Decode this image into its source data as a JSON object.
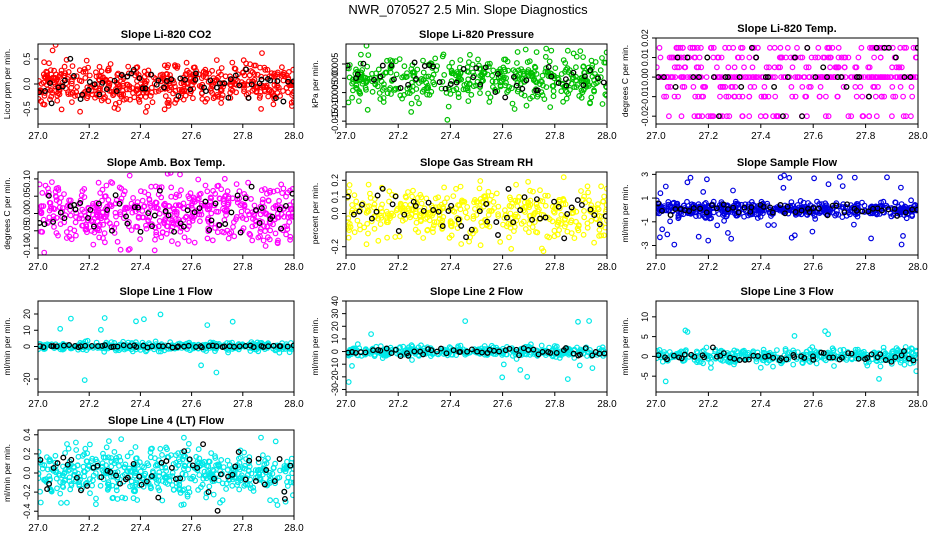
{
  "page_title": "NWR_070527  2.5 Min. Slope Diagnostics",
  "colors": {
    "axis": "#000000",
    "raw_point": "#000000"
  },
  "chart_data": [
    {
      "type": "scatter",
      "title": "Slope Li-820 CO2",
      "ylabel": "Licor ppm per min.",
      "xlim": [
        27.0,
        28.0
      ],
      "ylim": [
        -0.8,
        0.8
      ],
      "xticks": [
        27.0,
        27.2,
        27.4,
        27.6,
        27.8,
        28.0
      ],
      "xtick_labels": [
        "27.0",
        "27.2",
        "27.4",
        "27.6",
        "27.8",
        "28.0"
      ],
      "yticks": [
        -0.5,
        0.0,
        0.5
      ],
      "ytick_labels": [
        "-0.5",
        "0.0",
        "0.5"
      ],
      "color": "#ff0000",
      "spread": 0.22,
      "black_spread": 0.18,
      "seed": 11,
      "n": 520,
      "nblack": 60
    },
    {
      "type": "scatter",
      "title": "Slope Li-820 Pressure",
      "ylabel": "kPa per min.",
      "xlim": [
        27.0,
        28.0
      ],
      "ylim": [
        -0.016,
        0.012
      ],
      "xticks": [
        27.0,
        27.2,
        27.4,
        27.6,
        27.8,
        28.0
      ],
      "xtick_labels": [
        "27.0",
        "27.2",
        "27.4",
        "27.6",
        "27.8",
        "28.0"
      ],
      "yticks": [
        -0.015,
        -0.01,
        -0.005,
        0.0,
        0.005
      ],
      "ytick_labels": [
        "-0.015",
        "-0.010",
        "-0.005",
        "0.000",
        "0.005"
      ],
      "color": "#00c000",
      "spread": 0.004,
      "black_spread": 0.003,
      "seed": 23,
      "n": 450,
      "nblack": 45
    },
    {
      "type": "scatter",
      "title": "Slope Li-820 Temp.",
      "ylabel": "degrees C per min.",
      "xlim": [
        27.0,
        28.0
      ],
      "ylim": [
        -0.024,
        0.02
      ],
      "xticks": [
        27.0,
        27.2,
        27.4,
        27.6,
        27.8,
        28.0
      ],
      "xtick_labels": [
        "27.0",
        "27.2",
        "27.4",
        "27.6",
        "27.8",
        "28.0"
      ],
      "yticks": [
        -0.02,
        -0.01,
        0.0,
        0.01,
        0.02
      ],
      "ytick_labels": [
        "-0.02",
        "-0.01",
        "0.00",
        "0.01",
        "0.02"
      ],
      "color": "#ff00ff",
      "quantized": [
        0.0,
        0.0,
        0.0,
        0.0,
        0.005,
        -0.005,
        0.01,
        -0.01,
        0.015,
        -0.02
      ],
      "seed": 37,
      "n": 420,
      "nblack": 40
    },
    {
      "type": "scatter",
      "title": "Slope Amb. Box Temp.",
      "ylabel": "degrees C per min.",
      "xlim": [
        27.0,
        28.0
      ],
      "ylim": [
        -0.12,
        0.12
      ],
      "xticks": [
        27.0,
        27.2,
        27.4,
        27.6,
        27.8,
        28.0
      ],
      "xtick_labels": [
        "27.0",
        "27.2",
        "27.4",
        "27.6",
        "27.8",
        "28.0"
      ],
      "yticks": [
        -0.1,
        -0.05,
        0.0,
        0.05,
        0.1
      ],
      "ytick_labels": [
        "-0.10",
        "-0.05",
        "0.00",
        "0.05",
        "0.10"
      ],
      "color": "#ff00ff",
      "spread": 0.045,
      "black_spread": 0.035,
      "seed": 41,
      "n": 520,
      "nblack": 55
    },
    {
      "type": "scatter",
      "title": "Slope Gas Stream RH",
      "ylabel": "percent per min.",
      "xlim": [
        27.0,
        28.0
      ],
      "ylim": [
        -0.25,
        0.25
      ],
      "xticks": [
        27.0,
        27.2,
        27.4,
        27.6,
        27.8,
        28.0
      ],
      "xtick_labels": [
        "27.0",
        "27.2",
        "27.4",
        "27.6",
        "27.8",
        "28.0"
      ],
      "yticks": [
        -0.2,
        0.0,
        0.1,
        0.2
      ],
      "ytick_labels": [
        "-0.2",
        "0.0",
        "0.1",
        "0.2"
      ],
      "color": "#ffff00",
      "spread": 0.08,
      "black_spread": 0.07,
      "seed": 53,
      "n": 420,
      "nblack": 50
    },
    {
      "type": "scatter",
      "title": "Slope Sample Flow",
      "ylabel": "ml/min per min.",
      "xlim": [
        27.0,
        28.0
      ],
      "ylim": [
        -3.8,
        3.2
      ],
      "xticks": [
        27.0,
        27.2,
        27.4,
        27.6,
        27.8,
        28.0
      ],
      "xtick_labels": [
        "27.0",
        "27.2",
        "27.4",
        "27.6",
        "27.8",
        "28.0"
      ],
      "yticks": [
        -3,
        -1,
        1,
        3
      ],
      "ytick_labels": [
        "-3",
        "-1",
        "1",
        "3"
      ],
      "color": "#0000e0",
      "spread": 0.3,
      "black_spread": 0.25,
      "outliers": 0.05,
      "outlier_scale": 3.0,
      "seed": 67,
      "n": 520,
      "nblack": 50
    },
    {
      "type": "scatter",
      "title": "Slope Line 1 Flow",
      "ylabel": "ml/min per min.",
      "xlim": [
        27.0,
        28.0
      ],
      "ylim": [
        -28,
        28
      ],
      "xticks": [
        27.0,
        27.2,
        27.4,
        27.6,
        27.8,
        28.0
      ],
      "xtick_labels": [
        "27.0",
        "27.2",
        "27.4",
        "27.6",
        "27.8",
        "28.0"
      ],
      "yticks": [
        -20,
        0,
        10,
        20
      ],
      "ytick_labels": [
        "-20",
        "0",
        "10",
        "20"
      ],
      "color": "#00e8e8",
      "spread": 1.2,
      "black_spread": 0.4,
      "outliers": 0.03,
      "outlier_scale": 22,
      "seed": 71,
      "n": 380,
      "nblack": 55
    },
    {
      "type": "scatter",
      "title": "Slope Line 2 Flow",
      "ylabel": "ml/min per min.",
      "xlim": [
        27.0,
        28.0
      ],
      "ylim": [
        -32,
        40
      ],
      "xticks": [
        27.0,
        27.2,
        27.4,
        27.6,
        27.8,
        28.0
      ],
      "xtick_labels": [
        "27.0",
        "27.2",
        "27.4",
        "27.6",
        "27.8",
        "28.0"
      ],
      "yticks": [
        -30,
        -20,
        -10,
        0,
        10,
        20,
        30,
        40
      ],
      "ytick_labels": [
        "-30",
        "-20",
        "-10",
        "0",
        "10",
        "20",
        "30",
        "40"
      ],
      "color": "#00e8e8",
      "spread": 2.0,
      "black_spread": 1.5,
      "outliers": 0.03,
      "outlier_scale": 25,
      "seed": 83,
      "n": 380,
      "nblack": 55
    },
    {
      "type": "scatter",
      "title": "Slope Line 3 Flow",
      "ylabel": "ml/min per min.",
      "xlim": [
        27.0,
        28.0
      ],
      "ylim": [
        -9,
        14
      ],
      "xticks": [
        27.0,
        27.2,
        27.4,
        27.6,
        27.8,
        28.0
      ],
      "xtick_labels": [
        "27.0",
        "27.2",
        "27.4",
        "27.6",
        "27.8",
        "28.0"
      ],
      "yticks": [
        -5,
        0,
        5,
        10
      ],
      "ytick_labels": [
        "-5",
        "0",
        "5",
        "10"
      ],
      "color": "#00e8e8",
      "spread": 1.0,
      "black_spread": 0.6,
      "outliers": 0.04,
      "outlier_scale": 7,
      "seed": 97,
      "n": 380,
      "nblack": 55
    },
    {
      "type": "scatter",
      "title": "Slope Line 4 (LT) Flow",
      "ylabel": "ml/min per min.",
      "xlim": [
        27.0,
        28.0
      ],
      "ylim": [
        -0.45,
        0.45
      ],
      "xticks": [
        27.0,
        27.2,
        27.4,
        27.6,
        27.8,
        28.0
      ],
      "xtick_labels": [
        "27.0",
        "27.2",
        "27.4",
        "27.6",
        "27.8",
        "28.0"
      ],
      "yticks": [
        -0.4,
        -0.2,
        0.0,
        0.2,
        0.4
      ],
      "ytick_labels": [
        "-0.4",
        "-0.2",
        "0.0",
        "0.2",
        "0.4"
      ],
      "color": "#00e8e8",
      "spread": 0.13,
      "black_spread": 0.16,
      "seed": 101,
      "n": 520,
      "nblack": 55
    }
  ]
}
